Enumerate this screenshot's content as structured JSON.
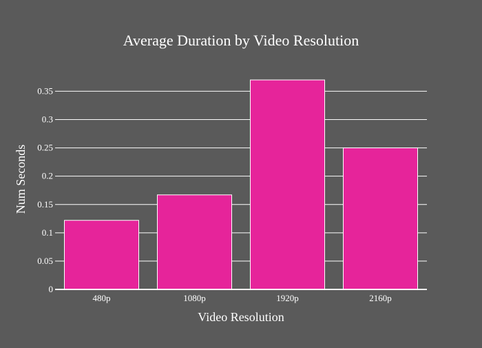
{
  "chart_data": {
    "type": "bar",
    "title": "Average Duration by Video Resolution",
    "xlabel": "Video Resolution",
    "ylabel": "Num Seconds",
    "categories": [
      "480p",
      "1080p",
      "1920p",
      "2160p"
    ],
    "values": [
      0.122,
      0.167,
      0.37,
      0.25
    ],
    "ylim": [
      0,
      0.37
    ],
    "yticks": [
      0,
      0.05,
      0.1,
      0.15,
      0.2,
      0.25,
      0.3,
      0.35
    ],
    "ytick_labels": [
      "0",
      "0.05",
      "0.1",
      "0.15",
      "0.2",
      "0.25",
      "0.3",
      "0.35"
    ],
    "grid": true,
    "legend": "none",
    "colors": {
      "background": "#5a5a5a",
      "bar_fill": "#e6249a",
      "bar_stroke": "#ffffff",
      "grid": "#ffffff",
      "text": "#ffffff"
    }
  }
}
